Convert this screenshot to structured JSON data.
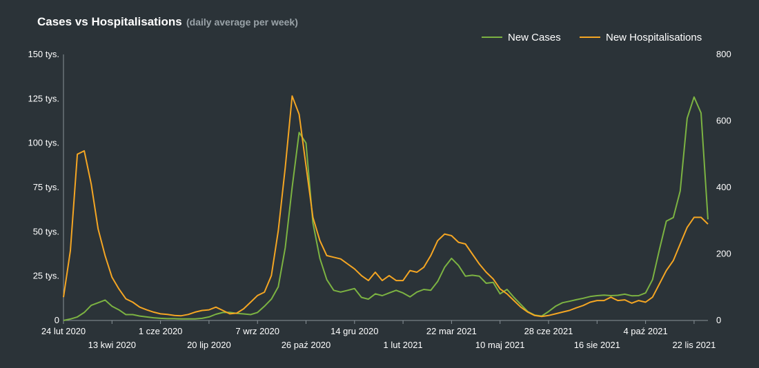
{
  "chart_data": {
    "type": "line",
    "title": "Cases vs Hospitalisations",
    "subtitle": "(daily average per week)",
    "legend_position": "top-right",
    "x_start": "2020-02-24",
    "x_step_days": 7,
    "x_range": [
      "2020-02-24",
      "2021-12-06"
    ],
    "y_left": {
      "range": [
        0,
        150000
      ],
      "ticks": [
        0,
        25000,
        50000,
        75000,
        100000,
        125000,
        150000
      ],
      "tick_labels": [
        "0",
        "25 tys.",
        "50 tys.",
        "75 tys.",
        "100 tys.",
        "125 tys.",
        "150 tys."
      ]
    },
    "y_right": {
      "range": [
        0,
        800
      ],
      "ticks": [
        0,
        200,
        400,
        600,
        800
      ],
      "tick_labels": [
        "0",
        "200",
        "400",
        "600",
        "800"
      ]
    },
    "x_ticks_row1": [
      {
        "date": "2020-02-24",
        "label": "24 lut 2020"
      },
      {
        "date": "2020-06-01",
        "label": "1 cze 2020"
      },
      {
        "date": "2020-09-07",
        "label": "7 wrz 2020"
      },
      {
        "date": "2020-12-14",
        "label": "14 gru 2020"
      },
      {
        "date": "2021-03-22",
        "label": "22 mar 2021"
      },
      {
        "date": "2021-06-28",
        "label": "28 cze 2021"
      },
      {
        "date": "2021-10-04",
        "label": "4 paź 2021"
      }
    ],
    "x_ticks_row2": [
      {
        "date": "2020-04-13",
        "label": "13 kwi 2020"
      },
      {
        "date": "2020-07-20",
        "label": "20 lip 2020"
      },
      {
        "date": "2020-10-26",
        "label": "26 paź 2020"
      },
      {
        "date": "2021-02-01",
        "label": "1 lut 2021"
      },
      {
        "date": "2021-05-10",
        "label": "10 maj 2021"
      },
      {
        "date": "2021-08-16",
        "label": "16 sie 2021"
      },
      {
        "date": "2021-11-22",
        "label": "22 lis 2021"
      }
    ],
    "series": [
      {
        "name": "New Cases",
        "axis": "left",
        "color": "#7cb342",
        "values": [
          0,
          800,
          2000,
          4500,
          8500,
          10000,
          11500,
          8000,
          6000,
          3300,
          3300,
          2500,
          2000,
          1500,
          1200,
          1000,
          1000,
          900,
          900,
          900,
          1200,
          2000,
          3500,
          4500,
          4600,
          4000,
          3700,
          3300,
          4500,
          8000,
          12000,
          19000,
          41000,
          75000,
          106000,
          100000,
          55000,
          35000,
          23000,
          17000,
          16000,
          17000,
          18000,
          13000,
          12000,
          15000,
          14000,
          15500,
          17000,
          15500,
          13300,
          16000,
          17500,
          17000,
          22000,
          30000,
          35000,
          31000,
          25000,
          25500,
          25000,
          21000,
          21500,
          15000,
          17500,
          13000,
          9000,
          5000,
          3000,
          2500,
          5000,
          8000,
          10000,
          10800,
          11700,
          12500,
          13500,
          14000,
          14300,
          14000,
          14200,
          14800,
          13900,
          14000,
          15500,
          23000,
          40000,
          56000,
          58000,
          73000,
          114000,
          126000,
          117000,
          57000
        ]
      },
      {
        "name": "New Hospitalisations",
        "axis": "right",
        "color": "#f5a623",
        "values": [
          70,
          210,
          500,
          510,
          410,
          275,
          195,
          130,
          95,
          65,
          55,
          40,
          32,
          25,
          20,
          18,
          15,
          14,
          18,
          25,
          30,
          32,
          40,
          30,
          20,
          22,
          35,
          55,
          75,
          85,
          135,
          270,
          460,
          675,
          620,
          465,
          310,
          240,
          195,
          190,
          185,
          170,
          155,
          135,
          120,
          145,
          120,
          135,
          120,
          120,
          150,
          145,
          160,
          195,
          240,
          260,
          255,
          235,
          230,
          200,
          170,
          145,
          125,
          95,
          80,
          60,
          40,
          25,
          15,
          12,
          15,
          20,
          25,
          30,
          38,
          45,
          55,
          60,
          60,
          70,
          60,
          62,
          52,
          60,
          55,
          70,
          110,
          150,
          180,
          230,
          280,
          310,
          310,
          290
        ]
      }
    ]
  }
}
